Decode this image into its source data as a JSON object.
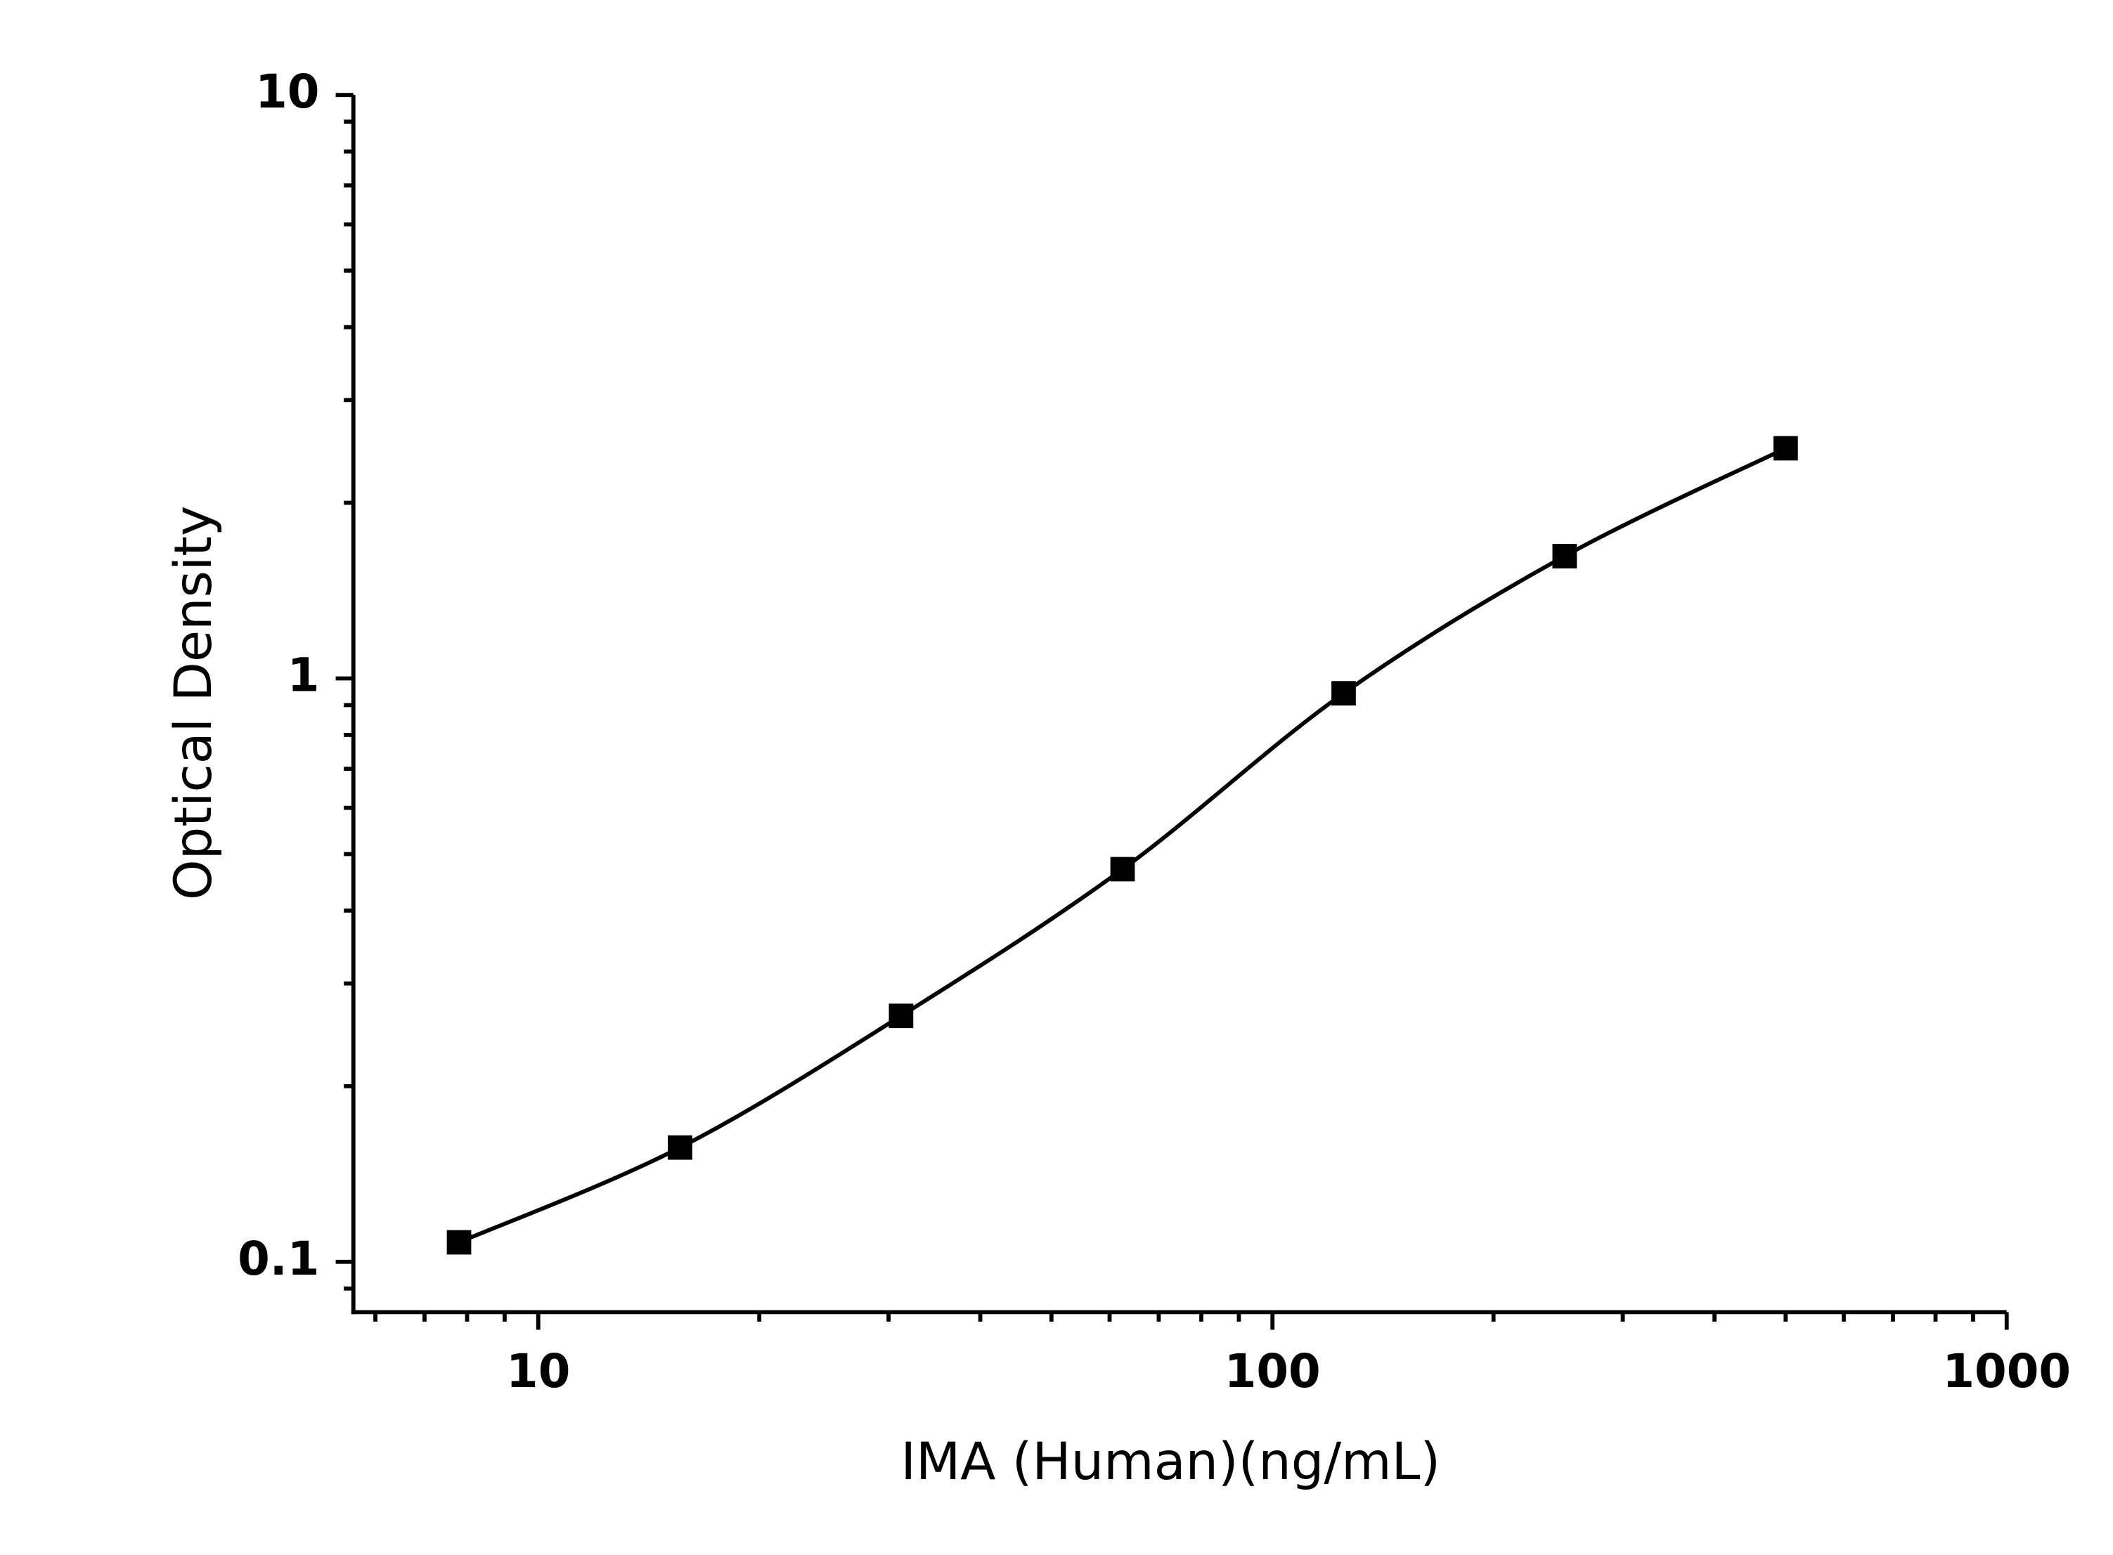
{
  "chart_data": {
    "type": "line",
    "x_label": "IMA (Human)(ng/mL)",
    "y_label": "Optical Density",
    "x": [
      7.8,
      15.6,
      31.2,
      62.5,
      125,
      250,
      500
    ],
    "values": [
      0.108,
      0.157,
      0.264,
      0.471,
      0.943,
      1.62,
      2.48
    ],
    "color": "#000000",
    "x_log": true,
    "y_log": true,
    "xlim": [
      5.6,
      1000
    ],
    "xticks": [
      10,
      100,
      1000
    ],
    "ylim": [
      0.082,
      10
    ],
    "yticks": [
      0.1,
      1,
      10
    ],
    "grid": false
  }
}
